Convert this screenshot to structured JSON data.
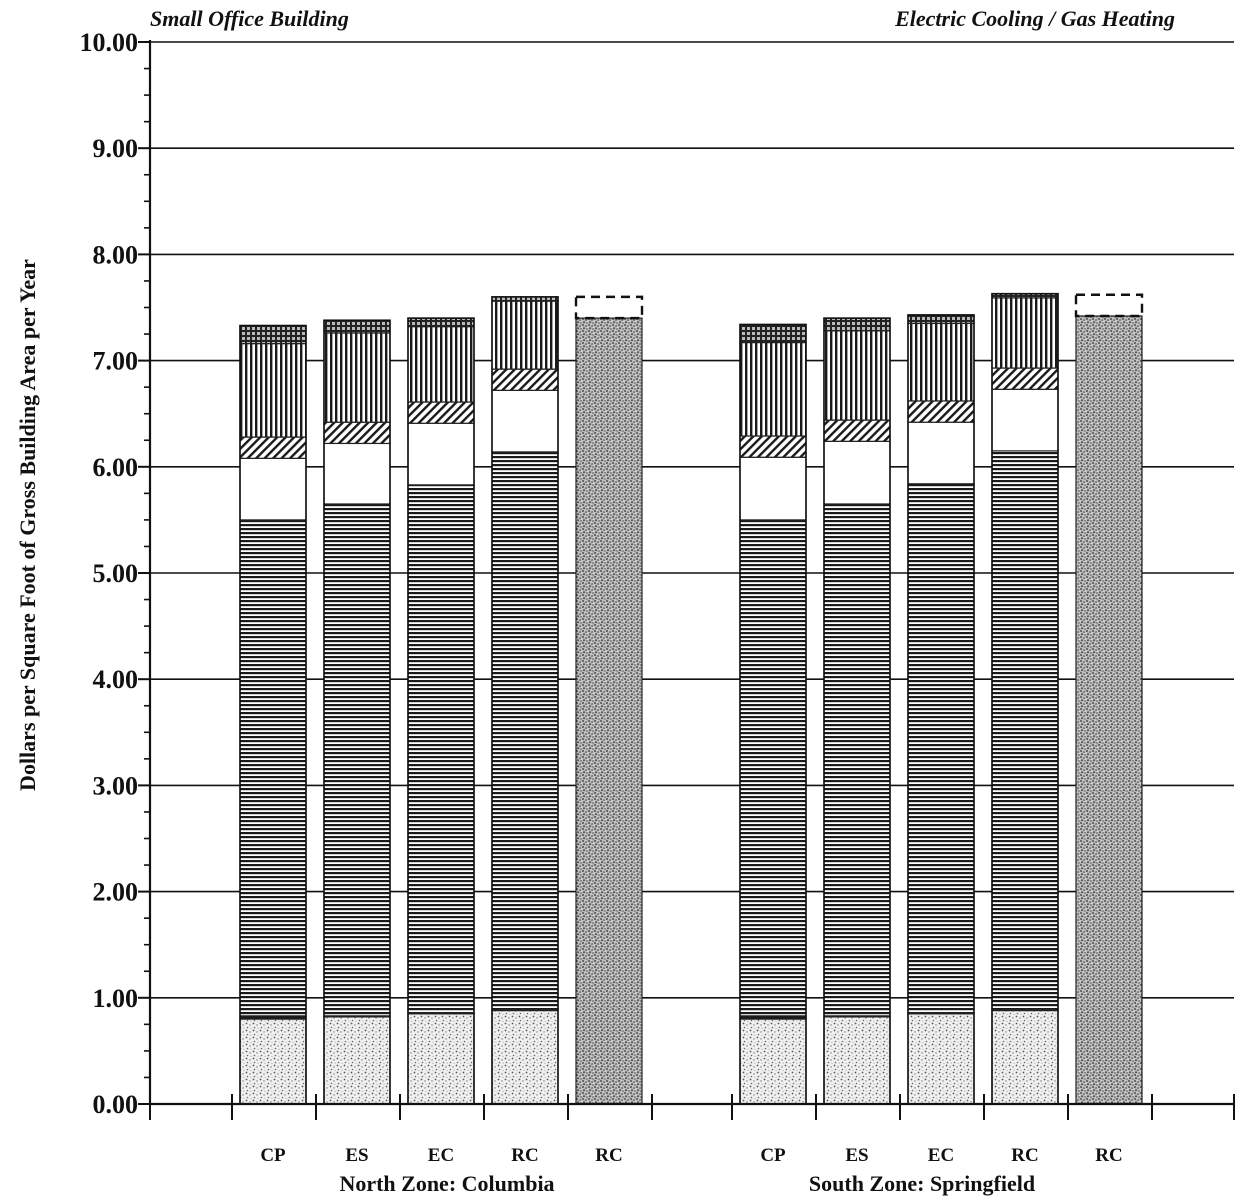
{
  "chart_data": {
    "type": "bar",
    "stacked": true,
    "title_left": "Small Office Building",
    "title_right": "Electric Cooling / Gas Heating",
    "ylabel": "Dollars per Square Foot of Gross Building Area per Year",
    "ylim": [
      0,
      10
    ],
    "yticks": [
      "0.00",
      "1.00",
      "2.00",
      "3.00",
      "4.00",
      "5.00",
      "6.00",
      "7.00",
      "8.00",
      "9.00",
      "10.00"
    ],
    "grid": true,
    "groups": [
      {
        "label": "North Zone: Columbia",
        "categories": [
          "CP",
          "ES",
          "EC",
          "RC",
          "RC"
        ],
        "stacks": [
          [
            0.8,
            0.03,
            4.67,
            0.58,
            0.2,
            0.88,
            0.17
          ],
          [
            0.82,
            0.01,
            4.82,
            0.57,
            0.2,
            0.84,
            0.12
          ],
          [
            0.85,
            0.01,
            4.97,
            0.58,
            0.2,
            0.71,
            0.08
          ],
          [
            0.88,
            0.01,
            5.25,
            0.58,
            0.2,
            0.64,
            0.04
          ],
          [
            7.4,
            0.2
          ]
        ]
      },
      {
        "label": "South Zone: Springfield",
        "categories": [
          "CP",
          "ES",
          "EC",
          "RC",
          "RC"
        ],
        "stacks": [
          [
            0.8,
            0.03,
            4.67,
            0.59,
            0.2,
            0.88,
            0.17
          ],
          [
            0.82,
            0.01,
            4.82,
            0.59,
            0.2,
            0.84,
            0.12
          ],
          [
            0.85,
            0.01,
            4.98,
            0.58,
            0.2,
            0.73,
            0.08
          ],
          [
            0.88,
            0.01,
            5.26,
            0.58,
            0.2,
            0.66,
            0.04
          ],
          [
            7.42,
            0.2
          ]
        ]
      }
    ],
    "segment_styles": [
      "stipple",
      "dark-band",
      "horizontal-lines",
      "blank",
      "diagonal-hatch",
      "vertical-lines",
      "crosshatch"
    ],
    "total_bar_styles": [
      "dense-stipple",
      "dashed-outline"
    ]
  }
}
